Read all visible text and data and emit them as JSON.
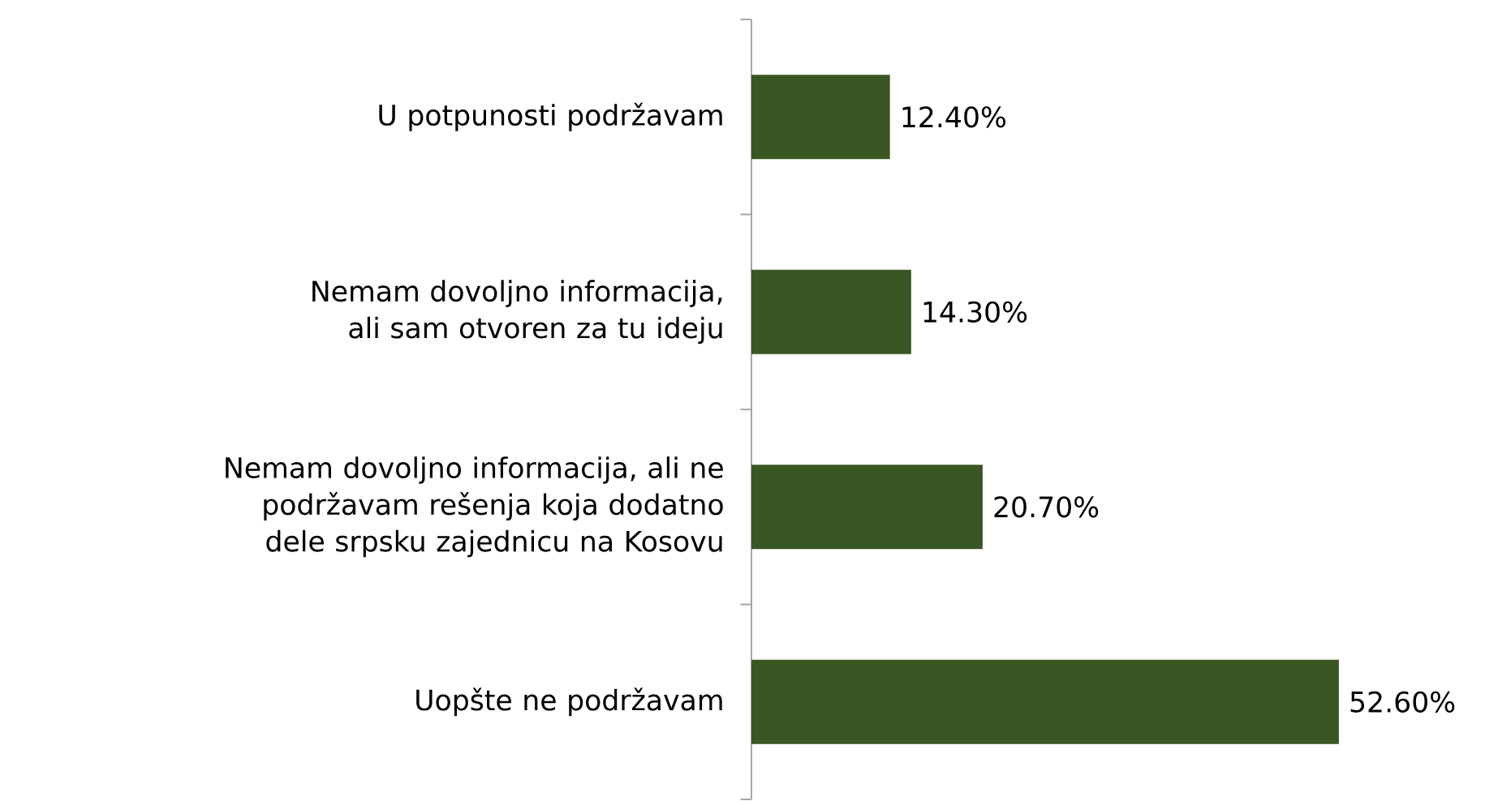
{
  "chart_data": {
    "type": "bar",
    "orientation": "horizontal",
    "categories": [
      "U potpunosti podržavam",
      "Nemam dovoljno informacija, ali sam otvoren za tu ideju",
      "Nemam dovoljno informacija, ali ne podržavam rešenja koja dodatno dele srpsku zajednicu na Kosovu",
      "Uopšte ne podržavam"
    ],
    "values": [
      12.4,
      14.3,
      20.7,
      52.6
    ],
    "value_labels": [
      "12.40%",
      "14.30%",
      "20.70%",
      "52.60%"
    ],
    "color": "#3a5622"
  }
}
